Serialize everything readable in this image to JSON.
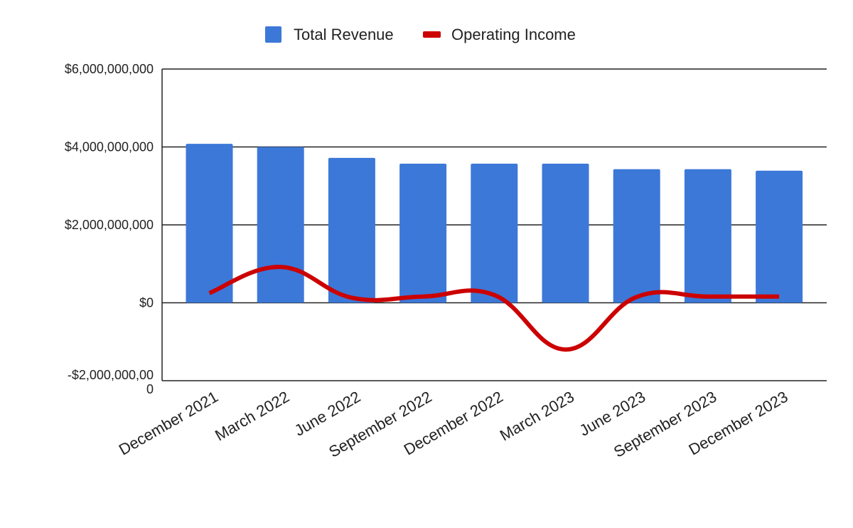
{
  "chart_data": {
    "type": "bar",
    "categories": [
      "December 2021",
      "March 2022",
      "June 2022",
      "September 2022",
      "December 2022",
      "March 2023",
      "June 2023",
      "September 2023",
      "December 2023"
    ],
    "series": [
      {
        "name": "Total Revenue",
        "type": "bar",
        "color": "#3c78d8",
        "values": [
          4080000000,
          4000000000,
          3720000000,
          3570000000,
          3570000000,
          3570000000,
          3430000000,
          3430000000,
          3390000000
        ]
      },
      {
        "name": "Operating Income",
        "type": "line",
        "smooth": true,
        "color": "#cc0000",
        "values": [
          250000000,
          920000000,
          130000000,
          160000000,
          200000000,
          -1200000000,
          150000000,
          160000000,
          160000000
        ]
      }
    ],
    "y_tick_labels": [
      "$6,000,000,000",
      "$4,000,000,000",
      "$2,000,000,000",
      "$0",
      "-$2,000,000,00 0"
    ],
    "y_tick_values": [
      6000000000,
      4000000000,
      2000000000,
      0,
      -2000000000
    ],
    "ylim": [
      -2000000000,
      6000000000
    ],
    "grid": true,
    "legend_position": "top"
  }
}
